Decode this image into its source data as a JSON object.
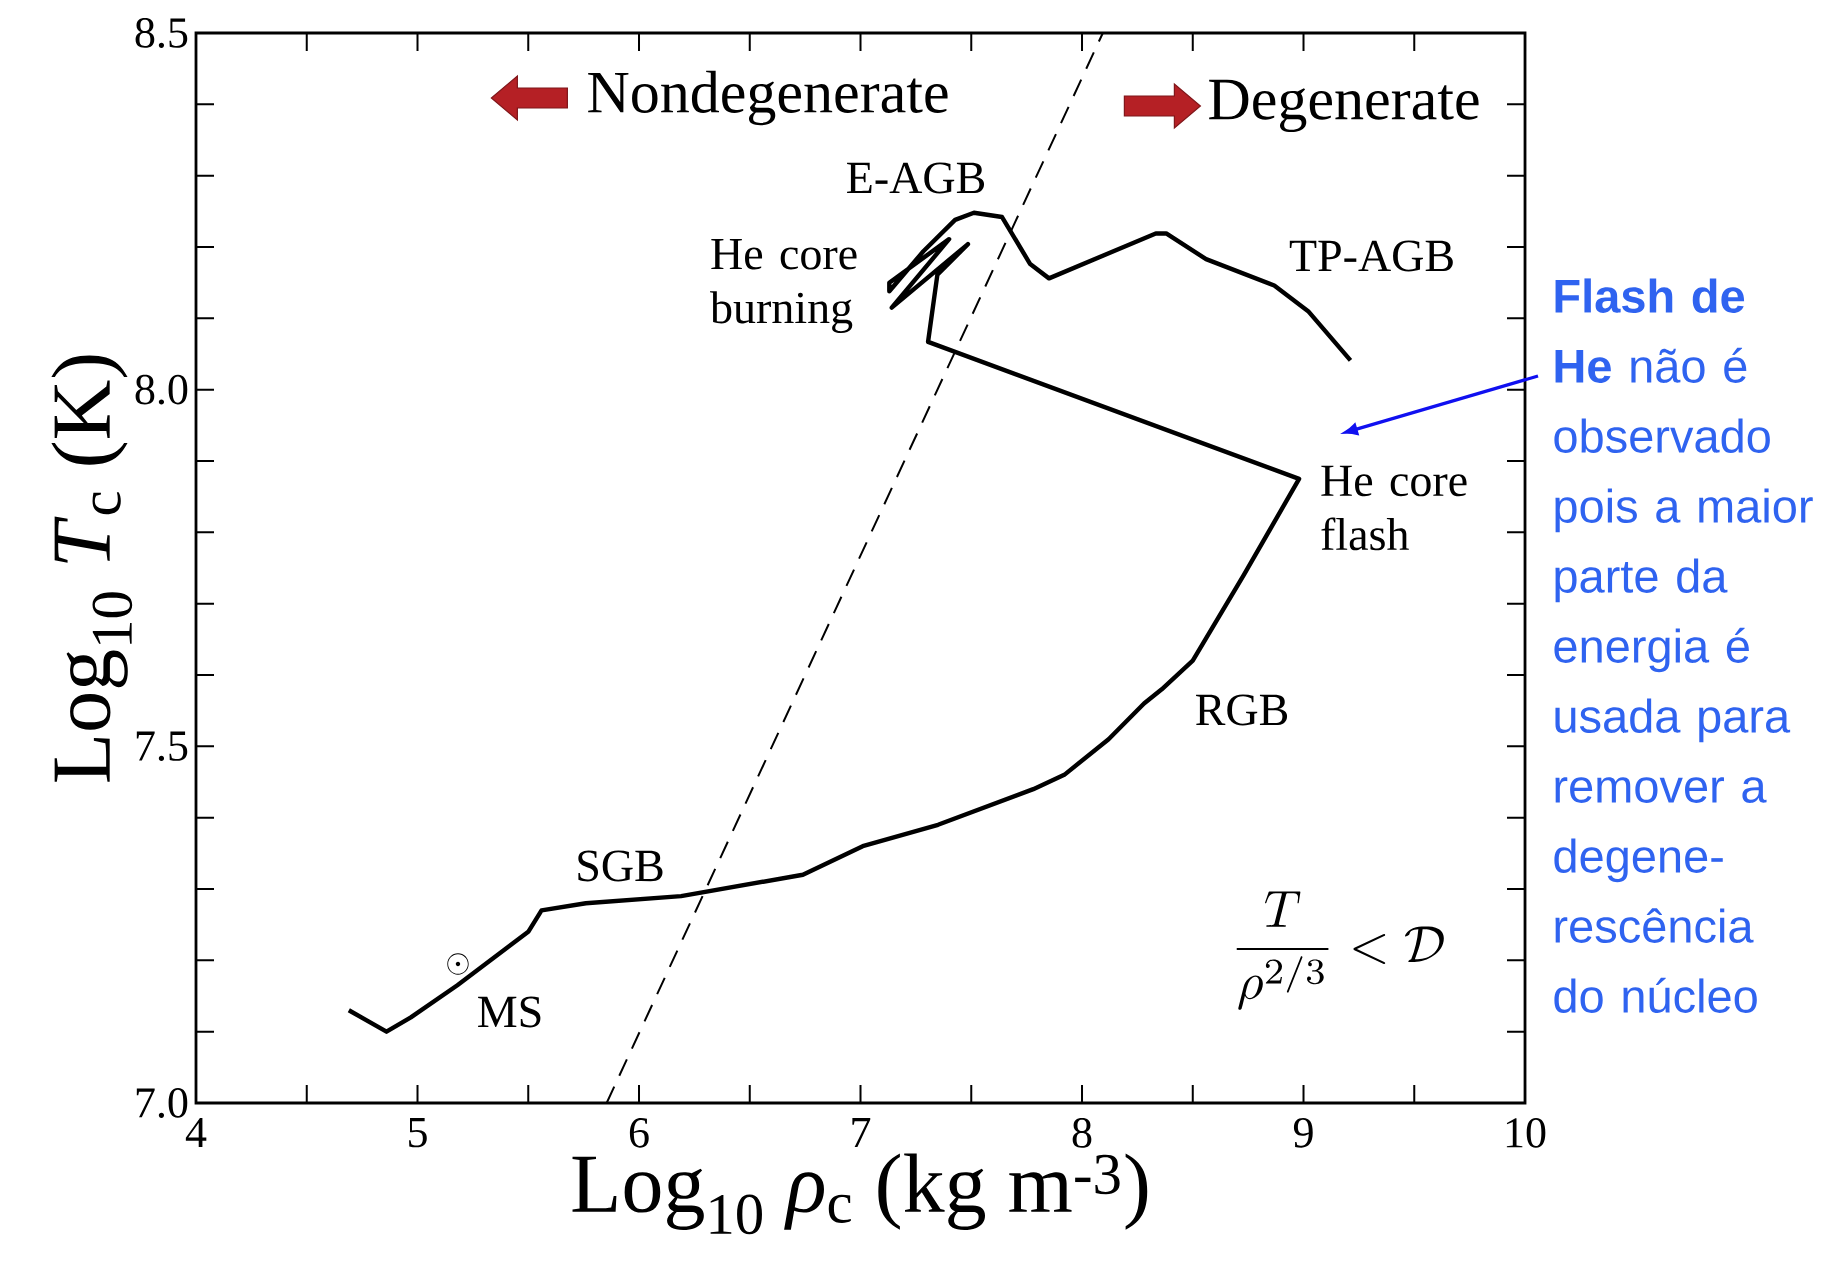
{
  "chart_data": {
    "type": "line",
    "xlabel": "Log$_{10}$ *ρ*$_{c}$ (kg m$^{-3}$)",
    "ylabel": "Log$_{10}$ *T*$_{c}$ (K)",
    "xlim": [
      4,
      10
    ],
    "ylim": [
      7.0,
      8.5
    ],
    "xticks": [
      4,
      5,
      6,
      7,
      8,
      9,
      10
    ],
    "yticks": [
      {
        "value": 7.0,
        "label": "7.0"
      },
      {
        "value": 7.5,
        "label": "7.5"
      },
      {
        "value": 8.0,
        "label": "8.0"
      },
      {
        "value": 8.5,
        "label": "8.5"
      }
    ],
    "series": [
      {
        "color": "#000000",
        "line_style": "solid",
        "x": [
          4.69,
          4.86,
          4.97,
          5.18,
          5.5,
          5.56,
          5.76,
          6.19,
          6.74,
          7.01,
          7.35,
          7.78,
          7.92,
          8.12,
          8.28,
          8.36,
          8.5,
          8.73,
          8.86,
          8.98,
          7.305,
          7.347,
          7.485,
          7.141,
          7.4,
          7.13,
          7.13,
          7.284,
          7.427,
          7.512,
          7.639,
          7.766,
          7.851,
          8.333,
          8.38,
          8.56,
          8.868,
          9.021,
          9.212
        ],
        "values": [
          7.13,
          7.1,
          7.12,
          7.165,
          7.24,
          7.27,
          7.28,
          7.29,
          7.32,
          7.36,
          7.39,
          7.44,
          7.46,
          7.51,
          7.56,
          7.58,
          7.62,
          7.74,
          7.81,
          7.875,
          8.067,
          8.161,
          8.204,
          8.115,
          8.211,
          8.15,
          8.138,
          8.194,
          8.238,
          8.248,
          8.242,
          8.176,
          8.156,
          8.219,
          8.219,
          8.183,
          8.146,
          8.11,
          8.041
        ]
      },
      {
        "color": "#000000",
        "line_style": "dashed",
        "x": [
          5.854,
          8.094
        ],
        "values": [
          7.0,
          8.5
        ]
      }
    ],
    "annotations": [
      "Nondegenerate",
      "Degenerate",
      "E-AGB",
      "He core burning",
      "TP-AGB",
      "He core flash",
      "RGB",
      "SGB",
      "MS",
      "\\odot",
      "\\frac{T}{\\rho^{2/3}} < \\mathcal{D}",
      "**Flash de He** não é observado pois a maior parte da energia é usada para remover a degene-rescência do núcleo"
    ]
  }
}
